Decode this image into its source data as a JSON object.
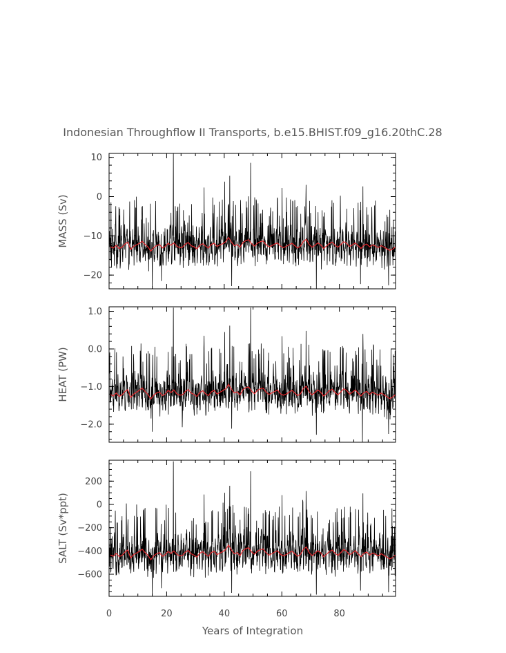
{
  "chart_data": {
    "type": "line",
    "title": "Indonesian Throughflow II Transports, b.e15.BHIST.f09_g16.20thC.28",
    "xlabel": "Years of Integration",
    "xlim": [
      0,
      99.5
    ],
    "x_ticks": [
      0,
      20,
      40,
      60,
      80
    ],
    "x_tick_labels": [
      "0",
      "20",
      "40",
      "60",
      "80"
    ],
    "x_minor_step": 5,
    "months_per_year": 12,
    "grid": false,
    "colors": {
      "monthly": "#000000",
      "annual_mean": "#e8262b"
    },
    "panels": [
      {
        "name": "mass",
        "ylabel": "MASS (Sv)",
        "ylim": [
          -23.5,
          11
        ],
        "y_ticks": [
          10,
          0,
          -10,
          -20
        ],
        "y_tick_labels": [
          "10",
          "0",
          "−10",
          "−20"
        ],
        "y_minor_step": 2,
        "annual_mean": [
          -12.8,
          -13.1,
          -12.4,
          -13.2,
          -12.9,
          -12.1,
          -11.6,
          -13.5,
          -12.7,
          -12.3,
          -11.9,
          -11.4,
          -12.2,
          -12.8,
          -13.9,
          -13.0,
          -12.5,
          -12.2,
          -13.1,
          -12.7,
          -11.9,
          -12.4,
          -11.8,
          -12.6,
          -13.0,
          -12.9,
          -12.1,
          -11.7,
          -12.5,
          -12.8,
          -13.3,
          -12.4,
          -12.0,
          -12.6,
          -13.1,
          -12.2,
          -11.9,
          -12.7,
          -12.3,
          -12.0,
          -11.5,
          -10.4,
          -11.6,
          -12.5,
          -12.2,
          -12.9,
          -11.7,
          -11.2,
          -11.0,
          -12.0,
          -12.6,
          -11.9,
          -11.5,
          -11.3,
          -12.2,
          -12.8,
          -12.5,
          -12.1,
          -11.8,
          -12.6,
          -13.0,
          -12.7,
          -12.3,
          -11.9,
          -12.5,
          -13.1,
          -12.6,
          -11.4,
          -10.9,
          -12.2,
          -12.9,
          -12.4,
          -11.8,
          -12.3,
          -13.2,
          -12.6,
          -12.0,
          -11.6,
          -12.4,
          -12.9,
          -12.2,
          -11.5,
          -11.9,
          -12.7,
          -12.3,
          -11.8,
          -12.5,
          -13.2,
          -12.4,
          -12.1,
          -12.8,
          -12.3,
          -12.6,
          -13.0,
          -12.5,
          -12.9,
          -13.3,
          -13.7,
          -13.4,
          -12.8
        ],
        "spikes_max": [
          [
            22.3,
            11
          ],
          [
            49.2,
            8.6
          ],
          [
            41.9,
            5.3
          ],
          [
            40.2,
            3.8
          ],
          [
            68.4,
            3.0
          ],
          [
            88.2,
            2.6
          ],
          [
            33.0,
            2.3
          ],
          [
            60.1,
            2.2
          ]
        ],
        "spikes_min": [
          [
            15.0,
            -23.0
          ],
          [
            72.0,
            -23.5
          ],
          [
            42.6,
            -22.8
          ],
          [
            97.1,
            -22.6
          ],
          [
            87.3,
            -22.3
          ],
          [
            18.2,
            -21.5
          ]
        ]
      },
      {
        "name": "heat",
        "ylabel": "HEAT (PW)",
        "ylim": [
          -2.48,
          1.12
        ],
        "y_ticks": [
          1.0,
          0.0,
          -1.0,
          -2.0
        ],
        "y_tick_labels": [
          "1.0",
          "0.0",
          "−1.0",
          "−2.0"
        ],
        "y_minor_step": 0.2,
        "annual_mean": [
          -1.21,
          -1.25,
          -1.17,
          -1.26,
          -1.22,
          -1.13,
          -1.08,
          -1.29,
          -1.2,
          -1.15,
          -1.1,
          -1.04,
          -1.13,
          -1.21,
          -1.33,
          -1.23,
          -1.17,
          -1.14,
          -1.24,
          -1.2,
          -1.1,
          -1.16,
          -1.09,
          -1.19,
          -1.23,
          -1.22,
          -1.13,
          -1.08,
          -1.17,
          -1.21,
          -1.26,
          -1.16,
          -1.11,
          -1.19,
          -1.24,
          -1.14,
          -1.1,
          -1.2,
          -1.15,
          -1.11,
          -1.06,
          -0.94,
          -1.07,
          -1.17,
          -1.14,
          -1.22,
          -1.08,
          -1.03,
          -1.01,
          -1.12,
          -1.19,
          -1.1,
          -1.06,
          -1.04,
          -1.14,
          -1.21,
          -1.17,
          -1.13,
          -1.09,
          -1.19,
          -1.23,
          -1.2,
          -1.15,
          -1.1,
          -1.17,
          -1.24,
          -1.19,
          -1.05,
          -0.99,
          -1.14,
          -1.22,
          -1.16,
          -1.09,
          -1.15,
          -1.25,
          -1.19,
          -1.11,
          -1.07,
          -1.16,
          -1.22,
          -1.14,
          -1.06,
          -1.1,
          -1.2,
          -1.15,
          -1.09,
          -1.17,
          -1.25,
          -1.16,
          -1.13,
          -1.21,
          -1.15,
          -1.19,
          -1.23,
          -1.17,
          -1.22,
          -1.27,
          -1.32,
          -1.28,
          -1.21
        ],
        "spikes_max": [
          [
            22.3,
            1.1
          ],
          [
            49.2,
            1.1
          ],
          [
            41.9,
            0.62
          ],
          [
            68.4,
            0.48
          ],
          [
            40.2,
            0.45
          ],
          [
            88.2,
            0.4
          ],
          [
            33.0,
            0.35
          ],
          [
            60.1,
            0.34
          ]
        ],
        "spikes_min": [
          [
            88.0,
            -2.48
          ],
          [
            72.0,
            -2.28
          ],
          [
            97.1,
            -2.26
          ],
          [
            15.0,
            -2.2
          ],
          [
            42.6,
            -2.12
          ],
          [
            25.4,
            -2.08
          ]
        ]
      },
      {
        "name": "salt",
        "ylabel": "SALT (Sv*ppt)",
        "ylim": [
          -790,
          380
        ],
        "y_ticks": [
          200,
          0,
          -200,
          -400,
          -600
        ],
        "y_tick_labels": [
          "200",
          "0",
          "−200",
          "−400",
          "−600"
        ],
        "y_minor_step": 50,
        "annual_mean": [
          -435,
          -445,
          -420,
          -448,
          -438,
          -410,
          -392,
          -460,
          -432,
          -418,
          -404,
          -385,
          -414,
          -436,
          -475,
          -442,
          -424,
          -414,
          -446,
          -432,
          -404,
          -422,
          -400,
          -428,
          -442,
          -438,
          -410,
          -396,
          -424,
          -436,
          -452,
          -420,
          -406,
          -428,
          -446,
          -414,
          -402,
          -432,
          -418,
          -406,
          -388,
          -350,
          -392,
          -424,
          -414,
          -440,
          -396,
          -380,
          -372,
          -408,
          -428,
          -402,
          -390,
          -382,
          -414,
          -436,
          -424,
          -410,
          -398,
          -428,
          -442,
          -432,
          -416,
          -402,
          -424,
          -446,
          -428,
          -386,
          -366,
          -414,
          -440,
          -420,
          -398,
          -416,
          -450,
          -428,
          -406,
          -392,
          -420,
          -438,
          -414,
          -388,
          -402,
          -432,
          -418,
          -398,
          -424,
          -450,
          -420,
          -410,
          -436,
          -418,
          -428,
          -442,
          -424,
          -438,
          -452,
          -468,
          -456,
          -434
        ],
        "spikes_max": [
          [
            22.3,
            370
          ],
          [
            49.2,
            285
          ],
          [
            41.9,
            160
          ],
          [
            68.4,
            115
          ],
          [
            40.2,
            100
          ],
          [
            88.2,
            95
          ],
          [
            33.0,
            85
          ],
          [
            60.1,
            80
          ]
        ],
        "spikes_min": [
          [
            15.0,
            -785
          ],
          [
            72.0,
            -775
          ],
          [
            42.6,
            -760
          ],
          [
            97.1,
            -755
          ],
          [
            87.3,
            -740
          ],
          [
            18.2,
            -720
          ]
        ]
      }
    ]
  }
}
